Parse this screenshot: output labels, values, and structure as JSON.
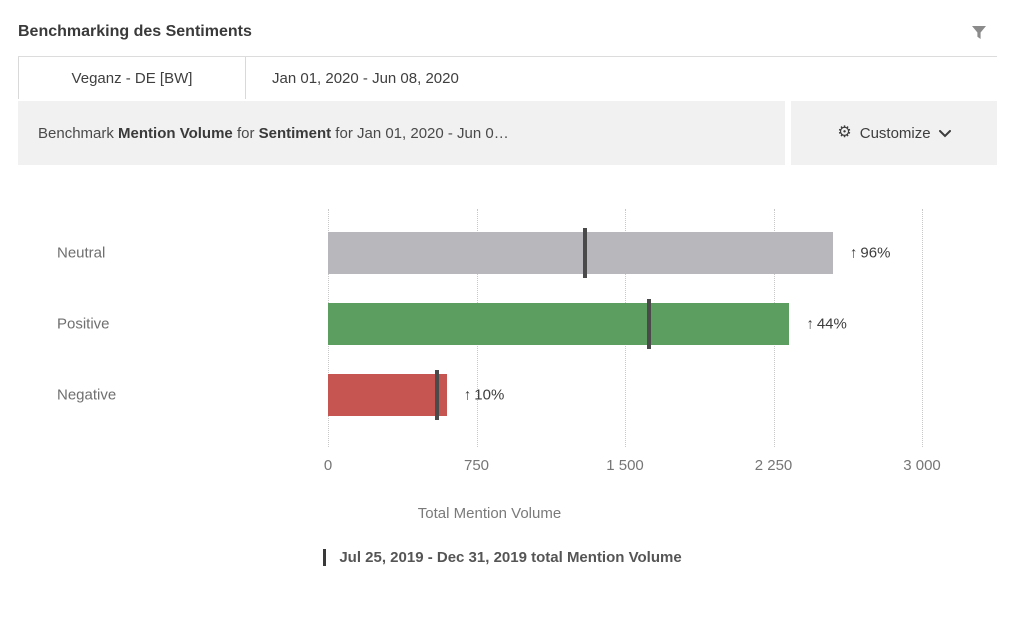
{
  "header": {
    "title": "Benchmarking des Sentiments"
  },
  "tabs": {
    "source": "Veganz - DE [BW]",
    "date_range": "Jan 01, 2020 - Jun 08, 2020"
  },
  "toolbar": {
    "desc_1": "Benchmark ",
    "desc_2": "Mention Volume",
    "desc_3": " for ",
    "desc_4": "Sentiment",
    "desc_5": " for Jan 01, 2020 - Jun 0…",
    "customize_label": "Customize"
  },
  "chart_data": {
    "type": "bar",
    "orientation": "horizontal",
    "title": "Benchmarking des Sentiments",
    "categories": [
      "Neutral",
      "Positive",
      "Negative"
    ],
    "bar_values": [
      2550,
      2330,
      600
    ],
    "bar_colors": [
      "#b8b8bc",
      "#5c9e60",
      "#c65552"
    ],
    "marker_values": [
      1300,
      1620,
      550
    ],
    "marker_color": "#4a4a4a",
    "marker_legend": "Jul 25, 2019 - Dec 31, 2019 total Mention Volume",
    "change_arrow": "↑",
    "change_labels": [
      "96%",
      "44%",
      "10%"
    ],
    "xticks": [
      "0",
      "750",
      "1 500",
      "2 250",
      "3 000"
    ],
    "xtick_values": [
      0,
      750,
      1500,
      2250,
      3000
    ],
    "xlim": [
      0,
      3000
    ],
    "xlabel": "Total Mention Volume",
    "grid": "dotted-vertical"
  },
  "footer": {
    "xlabel": "Total Mention Volume",
    "legend": "Jul 25, 2019 - Dec 31, 2019 total Mention Volume"
  }
}
